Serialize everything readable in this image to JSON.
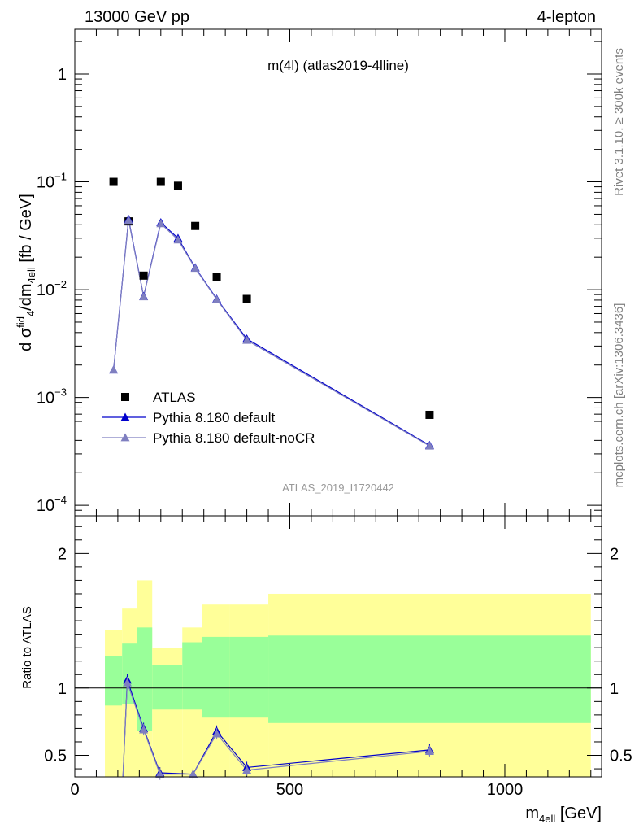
{
  "header": {
    "left": "13000 GeV pp",
    "right": "4-lepton"
  },
  "side_labels": {
    "rivet": "Rivet 3.1.10, ≥ 300k events",
    "mcplots": "mcplots.cern.ch [arXiv:1306.3436]"
  },
  "chart_data": [
    {
      "type": "scatter",
      "title": "m(4l) (atlas2019-4lline)",
      "watermark": "ATLAS_2019_I1720442",
      "ylabel": "dσᶠⁱᵈ₄/dm₄ₑₗₗ [fb / GeV]",
      "ylabel_parts": {
        "a": "d σ",
        "b": "fid",
        "c": "4",
        "d": "/dm",
        "e": "4ell",
        "f": " [fb / GeV]"
      },
      "yscale": "log",
      "xlim": [
        0,
        1225
      ],
      "ylim": [
        8e-05,
        2.6
      ],
      "yticks": [
        {
          "value": 0.0001,
          "base": "10",
          "exp": "−4"
        },
        {
          "value": 0.001,
          "base": "10",
          "exp": "−3"
        },
        {
          "value": 0.01,
          "base": "10",
          "exp": "−2"
        },
        {
          "value": 0.1,
          "base": "10",
          "exp": "−1"
        },
        {
          "value": 1,
          "base": "1",
          "exp": ""
        }
      ],
      "legend_position": "bottom-left",
      "series": [
        {
          "name": "ATLAS",
          "color": "#000000",
          "marker": "square",
          "x": [
            90,
            125,
            160,
            200,
            240,
            280,
            330,
            400,
            825
          ],
          "y": [
            0.1,
            0.043,
            0.0135,
            0.1,
            0.092,
            0.039,
            0.0132,
            0.0082,
            0.00069
          ]
        },
        {
          "name": "Pythia 8.180 default",
          "color": "#0000cc",
          "marker": "triangle",
          "x": [
            90,
            125,
            160,
            200,
            240,
            280,
            330,
            400,
            825
          ],
          "y": [
            0.0018,
            0.045,
            0.0087,
            0.042,
            0.03,
            0.016,
            0.0082,
            0.0035,
            0.00036
          ]
        },
        {
          "name": "Pythia 8.180 default-noCR",
          "color": "#7f7fc0",
          "marker": "triangle",
          "x": [
            90,
            125,
            160,
            200,
            240,
            280,
            330,
            400,
            825
          ],
          "y": [
            0.0018,
            0.044,
            0.0086,
            0.041,
            0.029,
            0.0158,
            0.0081,
            0.0034,
            0.000355
          ]
        }
      ]
    },
    {
      "type": "line",
      "ylabel": "Ratio to ATLAS",
      "xlabel_parts": {
        "a": "m",
        "b": "4ell",
        "c": " [GeV]"
      },
      "xlim": [
        0,
        1225
      ],
      "ylim": [
        0.34,
        2.28
      ],
      "xticks": [
        "0",
        "500",
        "1000"
      ],
      "xtick_values": [
        0,
        500,
        1000
      ],
      "yticks": [
        "0.5",
        "1",
        "2"
      ],
      "ytick_values": [
        0.5,
        1,
        2
      ],
      "reference_line": 1,
      "bands": {
        "edges": [
          70,
          110,
          145,
          180,
          215,
          250,
          295,
          360,
          450,
          1200
        ],
        "yellow": [
          [
            0.3,
            1.43
          ],
          [
            0.3,
            1.59
          ],
          [
            0.3,
            1.8
          ],
          [
            0.3,
            1.3
          ],
          [
            0.3,
            1.3
          ],
          [
            0.3,
            1.45
          ],
          [
            0.3,
            1.62
          ],
          [
            0.3,
            1.62
          ],
          [
            0.3,
            1.7
          ]
        ],
        "green": [
          [
            0.87,
            1.24
          ],
          [
            0.88,
            1.33
          ],
          [
            0.68,
            1.45
          ],
          [
            0.84,
            1.17
          ],
          [
            0.84,
            1.17
          ],
          [
            0.84,
            1.34
          ],
          [
            0.78,
            1.38
          ],
          [
            0.78,
            1.38
          ],
          [
            0.74,
            1.39
          ]
        ],
        "colors": {
          "yellow": "#ffff99",
          "green": "#99ff99"
        }
      },
      "series": [
        {
          "name": "Pythia 8.180 default",
          "color": "#0000cc",
          "x": [
            112,
            122,
            160,
            198,
            275,
            330,
            400,
            825
          ],
          "y": [
            0.3,
            1.06,
            0.7,
            0.37,
            0.36,
            0.68,
            0.41,
            0.54
          ]
        },
        {
          "name": "Pythia 8.180 default-noCR",
          "color": "#7f7fc0",
          "x": [
            112,
            122,
            160,
            198,
            275,
            330,
            400,
            825
          ],
          "y": [
            0.3,
            1.04,
            0.69,
            0.36,
            0.36,
            0.66,
            0.39,
            0.53
          ]
        }
      ]
    }
  ]
}
